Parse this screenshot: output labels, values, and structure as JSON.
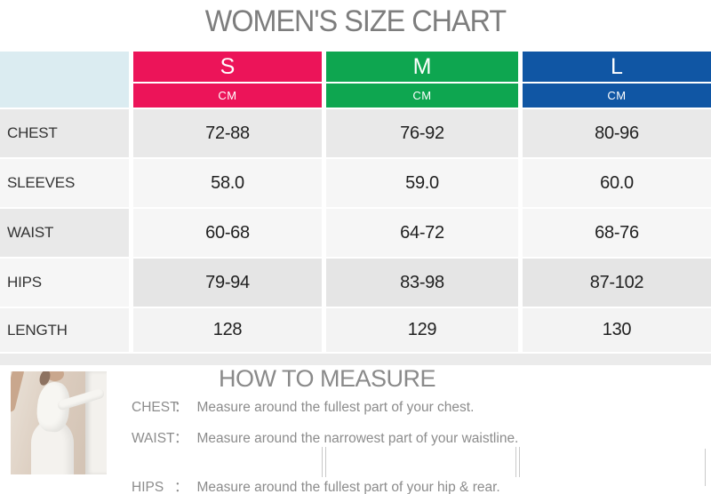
{
  "page": {
    "title": "WOMEN'S SIZE CHART"
  },
  "table": {
    "unit_label": "CM",
    "corner": "",
    "corner_color": "#dbecf1",
    "columns": [
      {
        "size": "S",
        "color": "#ec1459"
      },
      {
        "size": "M",
        "color": "#0ea650"
      },
      {
        "size": "L",
        "color": "#1056a4"
      }
    ],
    "rows": [
      {
        "label": "CHEST",
        "values": [
          "72-88",
          "76-92",
          "80-96"
        ]
      },
      {
        "label": "SLEEVES",
        "values": [
          "58.0",
          "59.0",
          "60.0"
        ]
      },
      {
        "label": "WAIST",
        "values": [
          "60-68",
          "64-72",
          "68-76"
        ]
      },
      {
        "label": "HIPS",
        "values": [
          "79-94",
          "83-98",
          "87-102"
        ]
      },
      {
        "label": "LENGTH",
        "values": [
          "128",
          "129",
          "130"
        ]
      }
    ]
  },
  "measure": {
    "title": "HOW TO MEASURE",
    "photo_alt": "woman-in-white-one-shoulder-dress",
    "items": [
      {
        "label": "CHEST",
        "colon": "：",
        "text": "Measure around the fullest part of your chest."
      },
      {
        "label": "WAIST",
        "colon": "：",
        "text": "Measure around the narrowest part of your waistline."
      },
      {
        "label": "HIPS",
        "colon": "：",
        "text": "Measure around the fullest part of your hip & rear."
      }
    ]
  }
}
